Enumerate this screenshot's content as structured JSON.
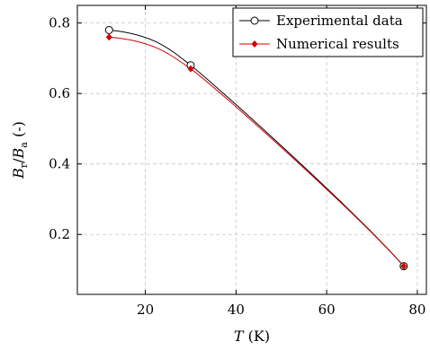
{
  "chart_data": {
    "type": "line",
    "xlabel": "T (K)",
    "ylabel": "Br/Ba (-)",
    "xlim": [
      5,
      82
    ],
    "ylim": [
      0.03,
      0.85
    ],
    "xticks": [
      20,
      40,
      60,
      80
    ],
    "yticks": [
      0.2,
      0.4,
      0.6,
      0.8
    ],
    "grid": true,
    "legend_position": "top-right",
    "series": [
      {
        "name": "Experimental data",
        "color": "#000000",
        "marker": "open-circle",
        "x": [
          12,
          30,
          77
        ],
        "y": [
          0.78,
          0.68,
          0.11
        ]
      },
      {
        "name": "Numerical results",
        "color": "#d40000",
        "marker": "filled-diamond",
        "x": [
          12,
          30,
          77
        ],
        "y": [
          0.76,
          0.67,
          0.11
        ]
      }
    ]
  },
  "labels": {
    "y_main": "B",
    "y_sub1": "r",
    "y_slash": "/",
    "y_main2": "B",
    "y_sub2": "a",
    "y_unit": " (-)",
    "x_main": "T",
    "x_unit": " (K)"
  }
}
